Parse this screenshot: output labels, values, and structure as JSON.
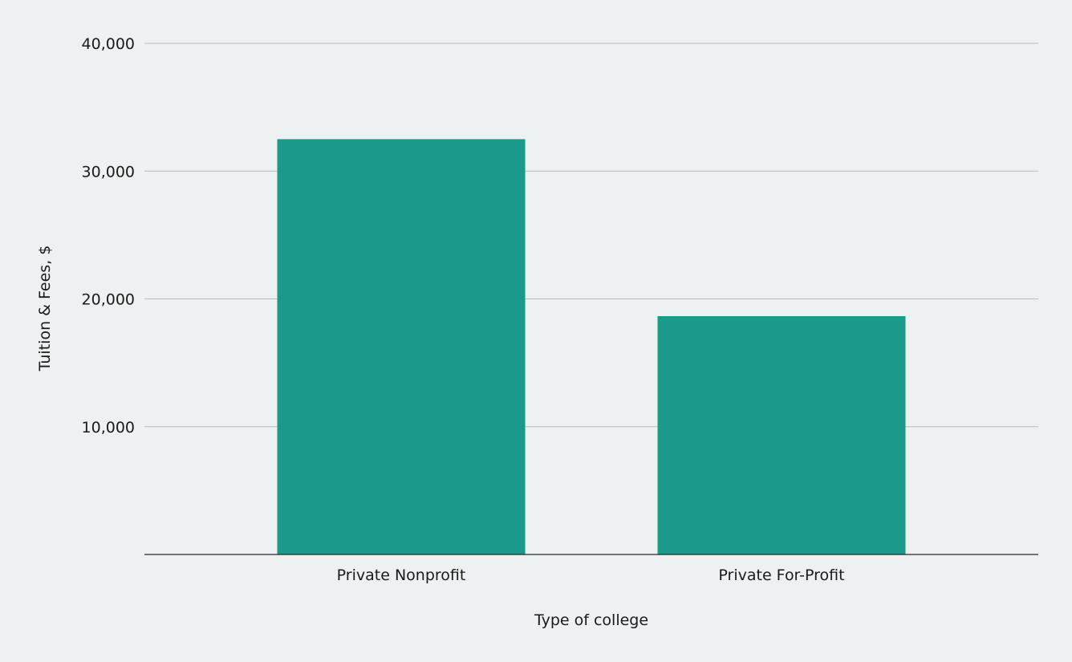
{
  "chart_data": {
    "type": "bar",
    "title": "",
    "xlabel": "Type of college",
    "ylabel": "Tuition & Fees, $",
    "categories": [
      "Private Nonprofit",
      "Private For-Profit"
    ],
    "values": [
      32500,
      18650
    ],
    "ylim": [
      0,
      40000
    ],
    "yticks": [
      10000,
      20000,
      30000,
      40000
    ],
    "ytick_labels": [
      "10,000",
      "20,000",
      "30,000",
      "40,000"
    ],
    "grid": true,
    "legend": "none",
    "colors": {
      "bar": "#1b9a8a",
      "background": "#edf1f2",
      "grid": "#b9bcbd",
      "axis": "#2a2a2a"
    }
  }
}
